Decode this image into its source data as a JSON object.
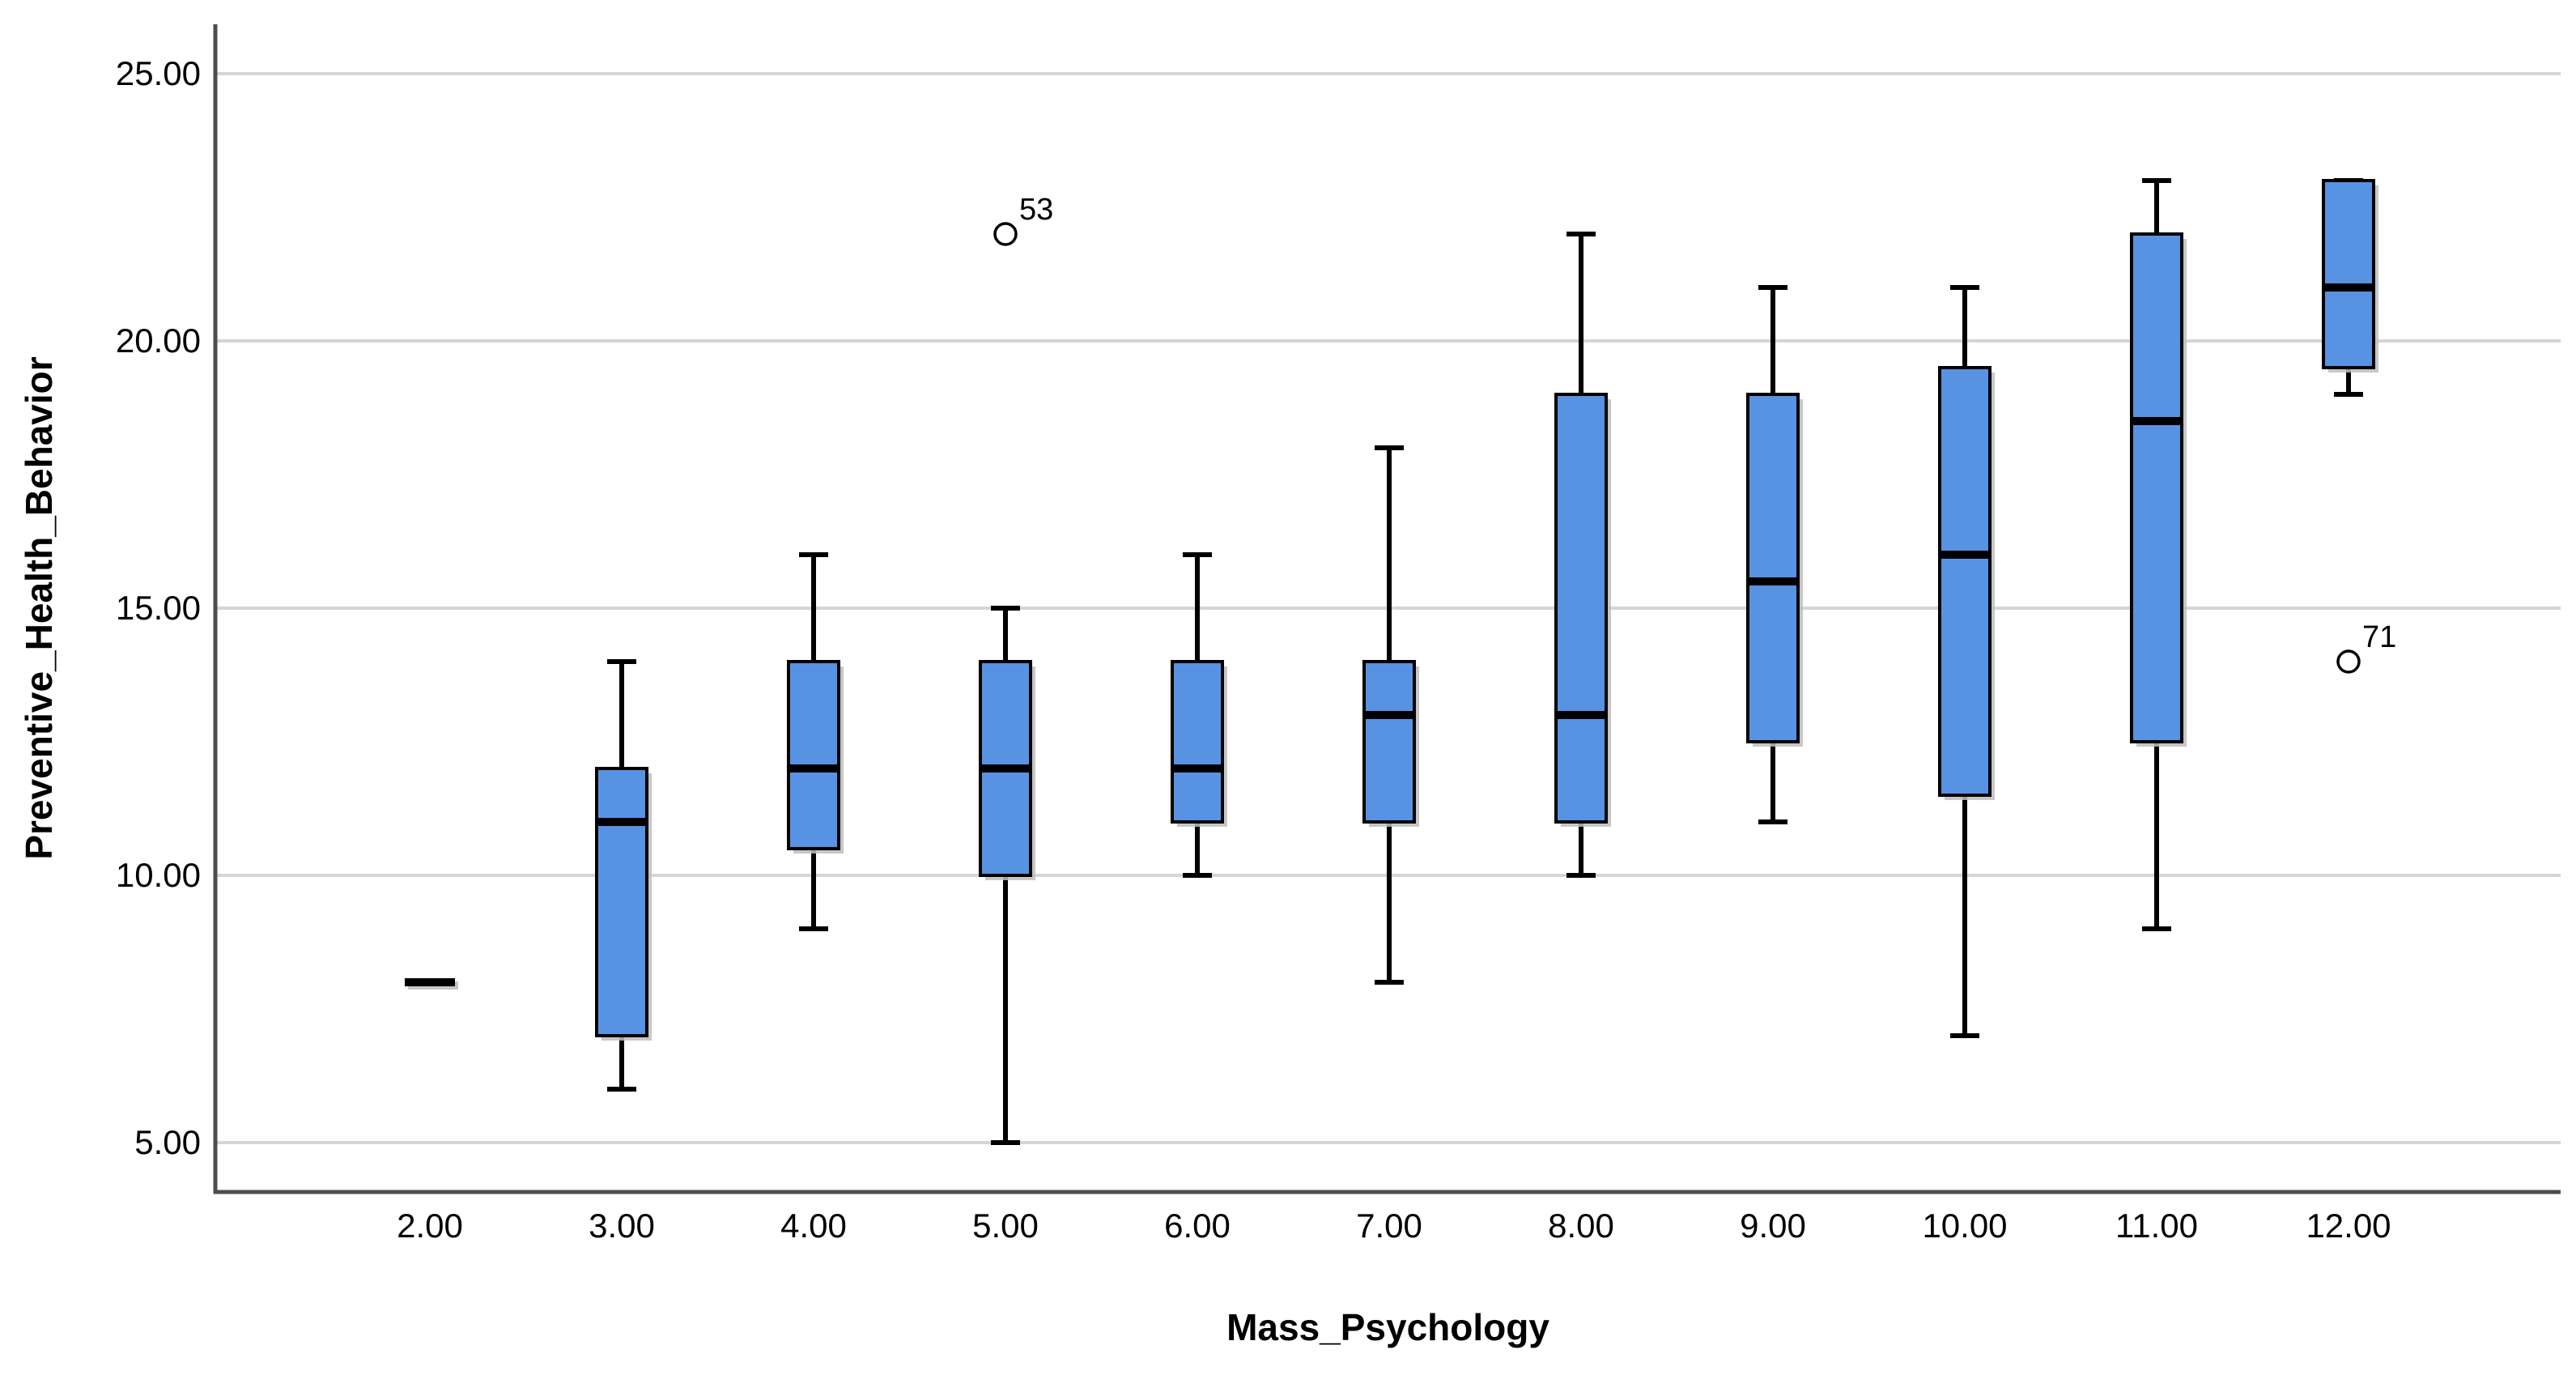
{
  "chart_data": {
    "type": "boxplot",
    "title": "",
    "xlabel": "Mass_Psychology",
    "ylabel": "Preventive_Health_Behavior",
    "categories": [
      "2.00",
      "3.00",
      "4.00",
      "5.00",
      "6.00",
      "7.00",
      "8.00",
      "9.00",
      "10.00",
      "11.00",
      "12.00"
    ],
    "ylim": [
      4.0,
      26.0
    ],
    "grid": "horizontal",
    "legend": "none",
    "y_axis_ticks": [
      {
        "value": 25,
        "label": "25.00"
      },
      {
        "value": 20,
        "label": "20.00"
      },
      {
        "value": 15,
        "label": "15.00"
      },
      {
        "value": 10,
        "label": "10.00"
      },
      {
        "value": 5,
        "label": "5.00"
      }
    ],
    "boxes": [
      {
        "category": "2.00",
        "whisker_low": null,
        "q1": null,
        "median": 8,
        "q3": null,
        "whisker_high": null,
        "outliers": []
      },
      {
        "category": "3.00",
        "whisker_low": 6,
        "q1": 7,
        "median": 11,
        "q3": 12,
        "whisker_high": 14,
        "outliers": []
      },
      {
        "category": "4.00",
        "whisker_low": 9,
        "q1": 10.5,
        "median": 12,
        "q3": 14,
        "whisker_high": 16,
        "outliers": []
      },
      {
        "category": "5.00",
        "whisker_low": 5,
        "q1": 10,
        "median": 12,
        "q3": 14,
        "whisker_high": 15,
        "outliers": [
          {
            "value": 22,
            "label": "53"
          }
        ]
      },
      {
        "category": "6.00",
        "whisker_low": 10,
        "q1": 11,
        "median": 12,
        "q3": 14,
        "whisker_high": 16,
        "outliers": []
      },
      {
        "category": "7.00",
        "whisker_low": 8,
        "q1": 11,
        "median": 13,
        "q3": 14,
        "whisker_high": 18,
        "outliers": []
      },
      {
        "category": "8.00",
        "whisker_low": 10,
        "q1": 11,
        "median": 13,
        "q3": 19,
        "whisker_high": 22,
        "outliers": []
      },
      {
        "category": "9.00",
        "whisker_low": 11,
        "q1": 12.5,
        "median": 15.5,
        "q3": 19,
        "whisker_high": 21,
        "outliers": []
      },
      {
        "category": "10.00",
        "whisker_low": 7,
        "q1": 11.5,
        "median": 16,
        "q3": 19.5,
        "whisker_high": 21,
        "outliers": []
      },
      {
        "category": "11.00",
        "whisker_low": 9,
        "q1": 12.5,
        "median": 18.5,
        "q3": 22,
        "whisker_high": 23,
        "outliers": []
      },
      {
        "category": "12.00",
        "whisker_low": 19,
        "q1": 19.5,
        "median": 21,
        "q3": 23,
        "whisker_high": 23,
        "outliers": [
          {
            "value": 14,
            "label": "71"
          }
        ]
      }
    ],
    "colors": {
      "box_fill": "#5793E2",
      "box_border": "#000000",
      "median": "#000000",
      "whisker": "#000000",
      "outlier_stroke": "#000000",
      "outlier_fill": "#FFFFFF",
      "gridline": "#D5D5D5",
      "axis_line": "#4D4D4D",
      "shadow": "#BDBDBD",
      "text": "#000000",
      "background": "#FFFFFF"
    }
  }
}
